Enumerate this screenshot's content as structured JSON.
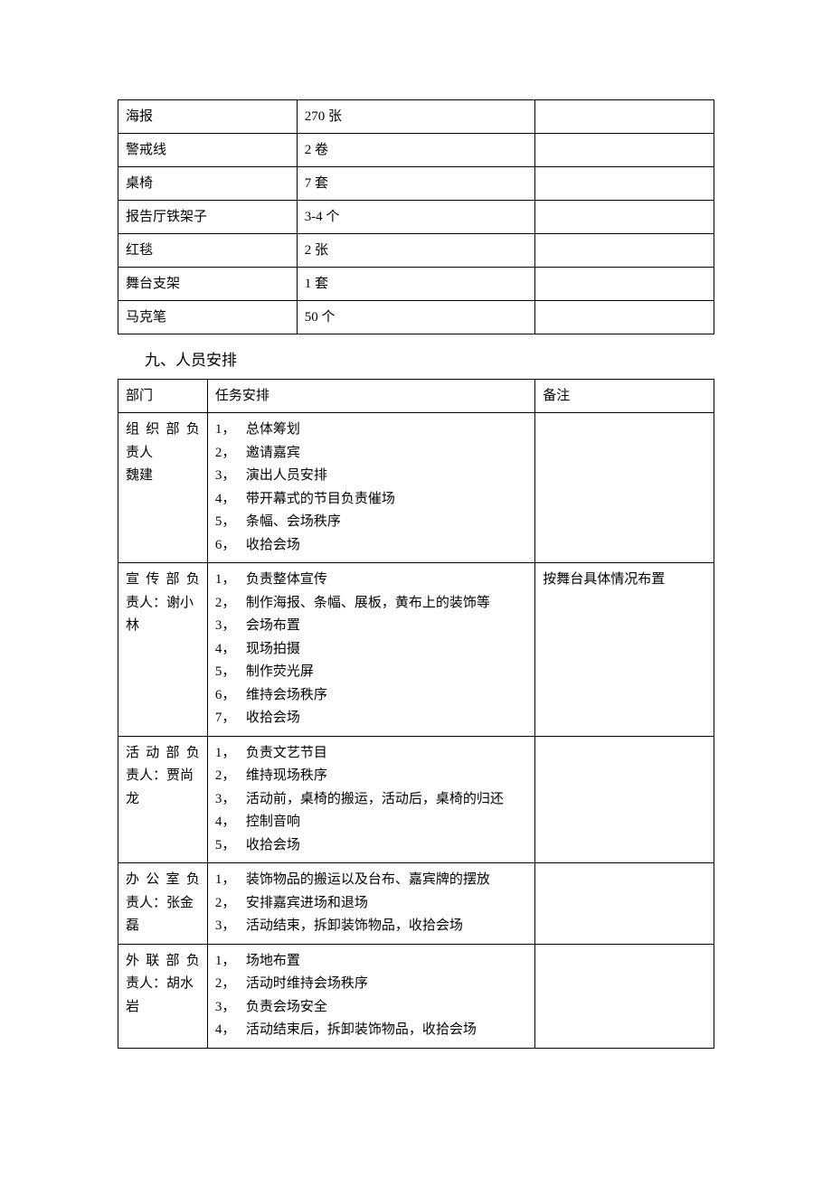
{
  "materials": {
    "rows": [
      {
        "item": "海报",
        "qty": "270 张",
        "note": ""
      },
      {
        "item": "警戒线",
        "qty": "2 卷",
        "note": ""
      },
      {
        "item": "桌椅",
        "qty": "7 套",
        "note": ""
      },
      {
        "item": "报告厅铁架子",
        "qty": "3-4 个",
        "note": ""
      },
      {
        "item": "红毯",
        "qty": "2 张",
        "note": ""
      },
      {
        "item": "舞台支架",
        "qty": "1 套",
        "note": ""
      },
      {
        "item": "马克笔",
        "qty": "50 个",
        "note": ""
      }
    ]
  },
  "section_heading": "九、人员安排",
  "personnel": {
    "header": {
      "dept": "部门",
      "tasks": "任务安排",
      "remark": "备注"
    },
    "rows": [
      {
        "dept_lines": [
          "组织部负",
          "责人",
          "魏建"
        ],
        "justify_flags": [
          true,
          false,
          false
        ],
        "tasks": [
          "总体筹划",
          "邀请嘉宾",
          "演出人员安排",
          "带开幕式的节目负责催场",
          "条幅、会场秩序",
          "收拾会场"
        ],
        "remark": ""
      },
      {
        "dept_lines": [
          "宣传部负",
          "责人：谢小",
          "林"
        ],
        "justify_flags": [
          true,
          false,
          false
        ],
        "tasks": [
          "负责整体宣传",
          "制作海报、条幅、展板，黄布上的装饰等",
          "会场布置",
          "现场拍摄",
          "制作荧光屏",
          "维持会场秩序",
          "收拾会场"
        ],
        "remark": "按舞台具体情况布置"
      },
      {
        "dept_lines": [
          "活动部负",
          "责人：贾尚",
          "龙"
        ],
        "justify_flags": [
          true,
          false,
          false
        ],
        "tasks": [
          "负责文艺节目",
          "维持现场秩序",
          "活动前，桌椅的搬运，活动后，桌椅的归还",
          "控制音响",
          "收拾会场"
        ],
        "remark": ""
      },
      {
        "dept_lines": [
          "办公室负",
          "责人：张金",
          "磊"
        ],
        "justify_flags": [
          true,
          false,
          false
        ],
        "tasks": [
          "装饰物品的搬运以及台布、嘉宾牌的摆放",
          "安排嘉宾进场和退场",
          "活动结束，拆卸装饰物品，收拾会场"
        ],
        "remark": ""
      },
      {
        "dept_lines": [
          "外联部负",
          "责人：胡水",
          "岩"
        ],
        "justify_flags": [
          true,
          false,
          false
        ],
        "tasks": [
          "场地布置",
          "活动时维持会场秩序",
          "负责会场安全",
          "活动结束后，拆卸装饰物品，收拾会场"
        ],
        "remark": ""
      }
    ]
  }
}
